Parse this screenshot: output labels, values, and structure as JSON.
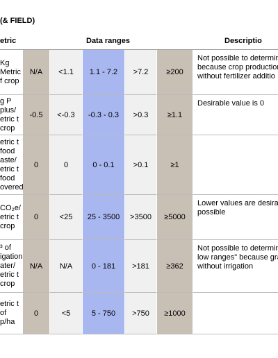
{
  "header": {
    "title": "(& FIELD)"
  },
  "table": {
    "columns": [
      "etric",
      "Data ranges",
      "Descriptio"
    ],
    "rows": [
      {
        "metric": [
          "Kg",
          "Metric",
          "f crop"
        ],
        "cells": [
          "N/A",
          "<1.1",
          "1.1 - 7.2",
          ">7.2",
          "≥200"
        ],
        "description": [
          "Not possible to determin",
          "because crop production",
          "without fertilizer additio"
        ]
      },
      {
        "metric": [
          "g P",
          "plus/",
          "etric t",
          "crop"
        ],
        "cells": [
          "-0.5",
          "<-0.3",
          "-0.3 - 0.3",
          ">0.3",
          "≥1.1"
        ],
        "description": [
          "Desirable value is 0"
        ]
      },
      {
        "metric": [
          "etric t",
          "food",
          "aste/",
          "etric t",
          "food",
          "overed"
        ],
        "cells": [
          "0",
          "0",
          "0 - 0.1",
          ">0.1",
          "≥1"
        ],
        "description": []
      },
      {
        "metric": [
          "CO₂e/",
          "etric t",
          "crop"
        ],
        "cells": [
          "0",
          "<25",
          "25 - 3500",
          ">3500",
          "≥5000"
        ],
        "description": [
          "Lower values are desirab",
          "possible"
        ]
      },
      {
        "metric": [
          "³ of",
          "igation",
          "ater/",
          "etric t",
          "crop"
        ],
        "cells": [
          "N/A",
          "N/A",
          "0 - 181",
          ">181",
          "≥362"
        ],
        "description": [
          "Not possible to determin",
          "low ranges\" because grap",
          "without irrigation"
        ]
      },
      {
        "metric": [
          "etric t",
          "of",
          "p/ha"
        ],
        "cells": [
          "0",
          "<5",
          "5 - 750",
          ">750",
          "≥1000"
        ],
        "description": []
      }
    ]
  }
}
